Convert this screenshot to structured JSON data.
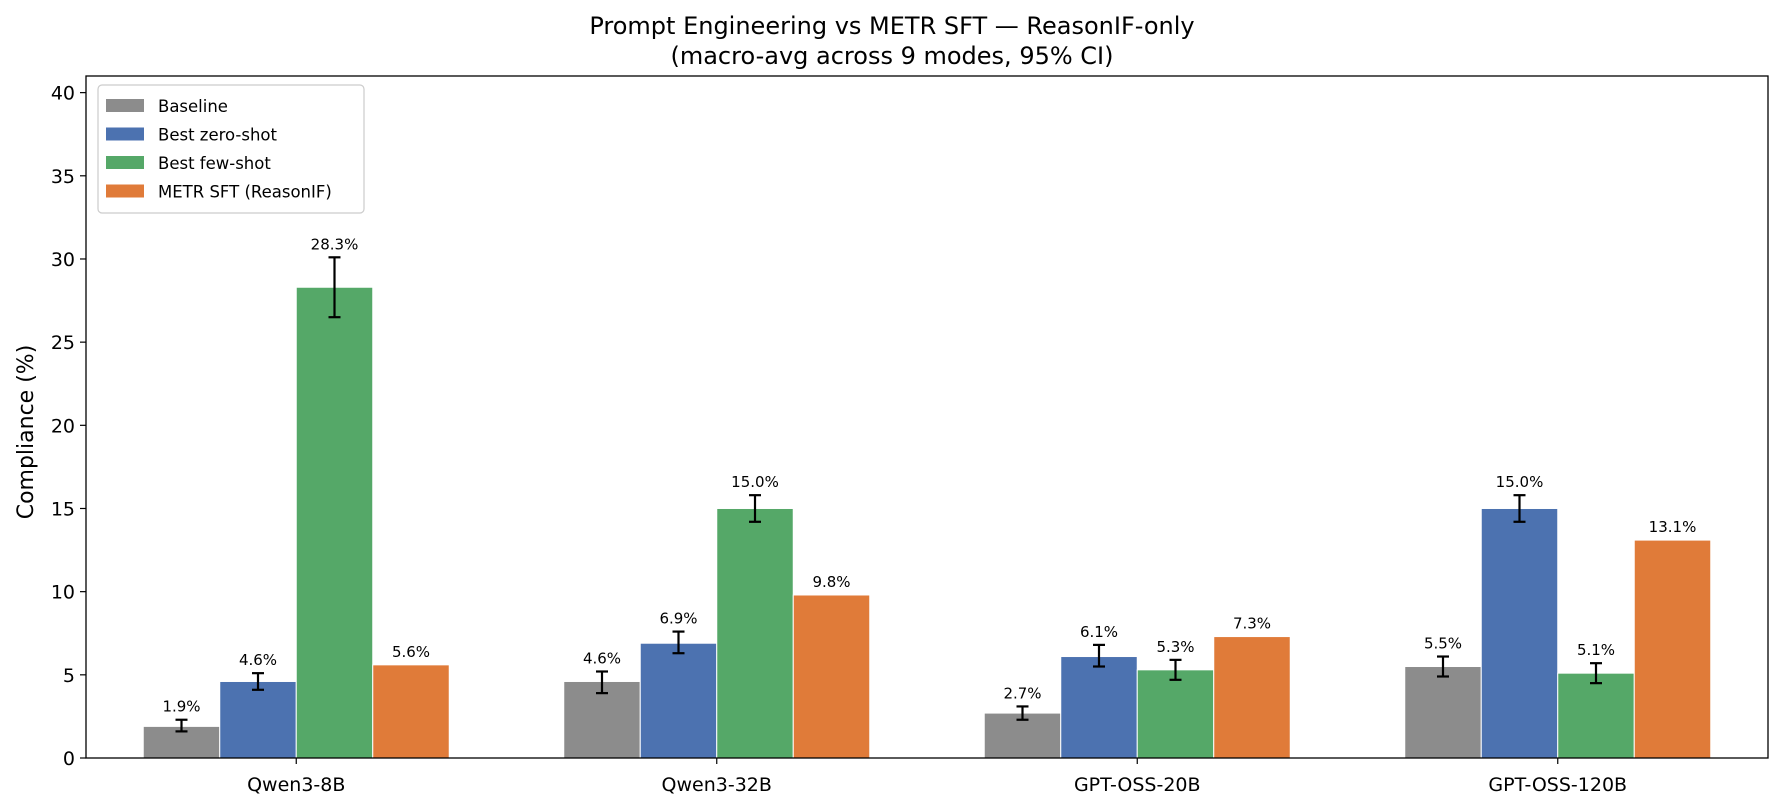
{
  "chart_data": {
    "type": "bar",
    "title": "Prompt Engineering vs METR SFT — ReasonIF-only",
    "subtitle": "(macro-avg across 9 modes, 95% CI)",
    "xlabel": "",
    "ylabel": "Compliance (%)",
    "ylim": [
      0,
      41
    ],
    "yticks": [
      0,
      5,
      10,
      15,
      20,
      25,
      30,
      35,
      40
    ],
    "grid": false,
    "legend_position": "top-left",
    "categories": [
      "Qwen3-8B",
      "Qwen3-32B",
      "GPT-OSS-20B",
      "GPT-OSS-120B"
    ],
    "series": [
      {
        "name": "Baseline",
        "color": "#8c8c8c",
        "values": [
          1.9,
          4.6,
          2.7,
          5.5
        ],
        "labels": [
          "1.9%",
          "4.6%",
          "2.7%",
          "5.5%"
        ],
        "ci": [
          [
            1.6,
            2.3
          ],
          [
            3.9,
            5.2
          ],
          [
            2.3,
            3.1
          ],
          [
            4.9,
            6.1
          ]
        ]
      },
      {
        "name": "Best zero-shot",
        "color": "#4c72b0",
        "values": [
          4.6,
          6.9,
          6.1,
          15.0
        ],
        "labels": [
          "4.6%",
          "6.9%",
          "6.1%",
          "15.0%"
        ],
        "ci": [
          [
            4.1,
            5.1
          ],
          [
            6.3,
            7.6
          ],
          [
            5.5,
            6.8
          ],
          [
            14.2,
            15.8
          ]
        ]
      },
      {
        "name": "Best few-shot",
        "color": "#55a868",
        "values": [
          28.3,
          15.0,
          5.3,
          5.1
        ],
        "labels": [
          "28.3%",
          "15.0%",
          "5.3%",
          "5.1%"
        ],
        "ci": [
          [
            26.5,
            30.1
          ],
          [
            14.2,
            15.8
          ],
          [
            4.7,
            5.9
          ],
          [
            4.5,
            5.7
          ]
        ]
      },
      {
        "name": "METR SFT (ReasonIF)",
        "color": "#e07b39",
        "values": [
          5.6,
          9.8,
          7.3,
          13.1
        ],
        "labels": [
          "5.6%",
          "9.8%",
          "7.3%",
          "13.1%"
        ],
        "ci": null
      }
    ]
  }
}
